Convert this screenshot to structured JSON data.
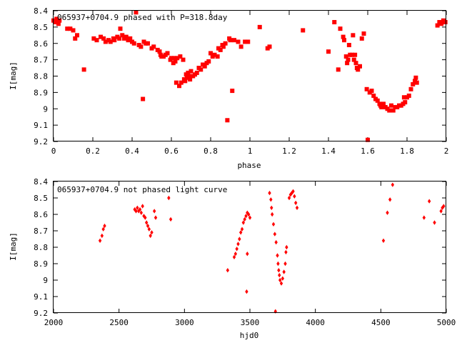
{
  "chart_data": [
    {
      "type": "scatter",
      "title": "065937+0704.9 phased with P=318.8day",
      "xlabel": "phase",
      "ylabel": "I[mag]",
      "xlim": [
        0,
        2
      ],
      "ylim": [
        9.2,
        8.4
      ],
      "y_inverted": true,
      "grid": false,
      "xticks": [
        "0",
        "0.2",
        "0.4",
        "0.6",
        "0.8",
        "1",
        "1.2",
        "1.4",
        "1.6",
        "1.8",
        "2"
      ],
      "yticks": [
        "8.4",
        "8.5",
        "8.6",
        "8.7",
        "8.8",
        "8.9",
        "9",
        "9.1",
        "9.2"
      ],
      "color": "#ff0000",
      "marker": "filled-square",
      "points": [
        [
          0.0,
          8.46
        ],
        [
          0.01,
          8.47
        ],
        [
          0.015,
          8.45
        ],
        [
          0.025,
          8.48
        ],
        [
          0.03,
          8.46
        ],
        [
          0.07,
          8.51
        ],
        [
          0.085,
          8.51
        ],
        [
          0.1,
          8.52
        ],
        [
          0.11,
          8.57
        ],
        [
          0.12,
          8.55
        ],
        [
          0.155,
          8.76
        ],
        [
          0.205,
          8.57
        ],
        [
          0.22,
          8.58
        ],
        [
          0.24,
          8.56
        ],
        [
          0.255,
          8.57
        ],
        [
          0.265,
          8.59
        ],
        [
          0.28,
          8.58
        ],
        [
          0.29,
          8.59
        ],
        [
          0.305,
          8.57
        ],
        [
          0.31,
          8.58
        ],
        [
          0.325,
          8.56
        ],
        [
          0.335,
          8.57
        ],
        [
          0.34,
          8.51
        ],
        [
          0.35,
          8.55
        ],
        [
          0.36,
          8.57
        ],
        [
          0.37,
          8.56
        ],
        [
          0.38,
          8.58
        ],
        [
          0.39,
          8.57
        ],
        [
          0.4,
          8.59
        ],
        [
          0.41,
          8.6
        ],
        [
          0.42,
          8.41
        ],
        [
          0.435,
          8.61
        ],
        [
          0.445,
          8.62
        ],
        [
          0.455,
          8.94
        ],
        [
          0.46,
          8.59
        ],
        [
          0.47,
          8.6
        ],
        [
          0.48,
          8.6
        ],
        [
          0.5,
          8.63
        ],
        [
          0.51,
          8.62
        ],
        [
          0.53,
          8.64
        ],
        [
          0.54,
          8.65
        ],
        [
          0.545,
          8.67
        ],
        [
          0.55,
          8.68
        ],
        [
          0.56,
          8.68
        ],
        [
          0.57,
          8.67
        ],
        [
          0.58,
          8.66
        ],
        [
          0.595,
          8.7
        ],
        [
          0.6,
          8.69
        ],
        [
          0.61,
          8.72
        ],
        [
          0.615,
          8.69
        ],
        [
          0.62,
          8.71
        ],
        [
          0.625,
          8.84
        ],
        [
          0.63,
          8.69
        ],
        [
          0.64,
          8.86
        ],
        [
          0.645,
          8.68
        ],
        [
          0.65,
          8.84
        ],
        [
          0.66,
          8.7
        ],
        [
          0.665,
          8.82
        ],
        [
          0.67,
          8.83
        ],
        [
          0.675,
          8.79
        ],
        [
          0.68,
          8.81
        ],
        [
          0.685,
          8.78
        ],
        [
          0.69,
          8.8
        ],
        [
          0.695,
          8.82
        ],
        [
          0.7,
          8.77
        ],
        [
          0.71,
          8.8
        ],
        [
          0.72,
          8.79
        ],
        [
          0.73,
          8.78
        ],
        [
          0.74,
          8.75
        ],
        [
          0.75,
          8.76
        ],
        [
          0.76,
          8.73
        ],
        [
          0.77,
          8.74
        ],
        [
          0.78,
          8.72
        ],
        [
          0.79,
          8.71
        ],
        [
          0.8,
          8.66
        ],
        [
          0.81,
          8.68
        ],
        [
          0.82,
          8.67
        ],
        [
          0.835,
          8.68
        ],
        [
          0.84,
          8.63
        ],
        [
          0.85,
          8.64
        ],
        [
          0.86,
          8.61
        ],
        [
          0.865,
          8.62
        ],
        [
          0.875,
          8.6
        ],
        [
          0.885,
          9.07
        ],
        [
          0.895,
          8.57
        ],
        [
          0.9,
          8.58
        ],
        [
          0.91,
          8.89
        ],
        [
          0.92,
          8.58
        ],
        [
          0.94,
          8.59
        ],
        [
          0.955,
          8.62
        ],
        [
          0.975,
          8.59
        ],
        [
          0.99,
          8.59
        ],
        [
          1.05,
          8.5
        ],
        [
          1.09,
          8.63
        ],
        [
          1.1,
          8.62
        ],
        [
          1.27,
          8.52
        ],
        [
          1.4,
          8.65
        ],
        [
          1.43,
          8.47
        ],
        [
          1.45,
          8.76
        ],
        [
          1.46,
          8.51
        ],
        [
          1.475,
          8.56
        ],
        [
          1.48,
          8.58
        ],
        [
          1.49,
          8.68
        ],
        [
          1.495,
          8.72
        ],
        [
          1.5,
          8.7
        ],
        [
          1.505,
          8.61
        ],
        [
          1.51,
          8.67
        ],
        [
          1.52,
          8.67
        ],
        [
          1.525,
          8.55
        ],
        [
          1.53,
          8.7
        ],
        [
          1.535,
          8.67
        ],
        [
          1.54,
          8.72
        ],
        [
          1.545,
          8.75
        ],
        [
          1.55,
          8.76
        ],
        [
          1.56,
          8.74
        ],
        [
          1.57,
          8.57
        ],
        [
          1.58,
          8.54
        ],
        [
          1.595,
          8.88
        ],
        [
          1.6,
          9.19
        ],
        [
          1.61,
          8.9
        ],
        [
          1.62,
          8.89
        ],
        [
          1.63,
          8.92
        ],
        [
          1.64,
          8.94
        ],
        [
          1.65,
          8.95
        ],
        [
          1.66,
          8.97
        ],
        [
          1.665,
          8.98
        ],
        [
          1.67,
          8.99
        ],
        [
          1.68,
          8.97
        ],
        [
          1.69,
          8.99
        ],
        [
          1.7,
          9.0
        ],
        [
          1.71,
          9.01
        ],
        [
          1.72,
          8.98
        ],
        [
          1.73,
          9.01
        ],
        [
          1.74,
          8.99
        ],
        [
          1.75,
          8.99
        ],
        [
          1.76,
          8.98
        ],
        [
          1.77,
          8.98
        ],
        [
          1.78,
          8.97
        ],
        [
          1.785,
          8.93
        ],
        [
          1.79,
          8.96
        ],
        [
          1.8,
          8.93
        ],
        [
          1.81,
          8.92
        ],
        [
          1.82,
          8.88
        ],
        [
          1.83,
          8.85
        ],
        [
          1.84,
          8.83
        ],
        [
          1.845,
          8.81
        ],
        [
          1.85,
          8.84
        ],
        [
          1.955,
          8.49
        ],
        [
          1.965,
          8.47
        ],
        [
          1.975,
          8.48
        ],
        [
          1.985,
          8.46
        ],
        [
          1.995,
          8.47
        ]
      ]
    },
    {
      "type": "scatter",
      "title": "065937+0704.9 not phased light curve",
      "xlabel": "hjd0",
      "ylabel": "I[mag]",
      "xlim": [
        2000,
        5000
      ],
      "ylim": [
        9.2,
        8.4
      ],
      "y_inverted": true,
      "grid": false,
      "xticks": [
        "2000",
        "2500",
        "3000",
        "3500",
        "4000",
        "4500",
        "5000"
      ],
      "yticks": [
        "8.4",
        "8.5",
        "8.6",
        "8.7",
        "8.8",
        "8.9",
        "9",
        "9.1",
        "9.2"
      ],
      "color": "#ff0000",
      "marker": "filled-diamond",
      "points": [
        [
          2355,
          8.76
        ],
        [
          2370,
          8.73
        ],
        [
          2380,
          8.69
        ],
        [
          2390,
          8.67
        ],
        [
          2620,
          8.57
        ],
        [
          2630,
          8.58
        ],
        [
          2640,
          8.56
        ],
        [
          2650,
          8.58
        ],
        [
          2660,
          8.57
        ],
        [
          2670,
          8.59
        ],
        [
          2680,
          8.55
        ],
        [
          2690,
          8.61
        ],
        [
          2700,
          8.62
        ],
        [
          2710,
          8.65
        ],
        [
          2720,
          8.67
        ],
        [
          2730,
          8.69
        ],
        [
          2740,
          8.73
        ],
        [
          2750,
          8.71
        ],
        [
          2770,
          8.58
        ],
        [
          2780,
          8.62
        ],
        [
          2880,
          8.5
        ],
        [
          2895,
          8.63
        ],
        [
          3330,
          8.94
        ],
        [
          3380,
          8.86
        ],
        [
          3390,
          8.84
        ],
        [
          3400,
          8.81
        ],
        [
          3410,
          8.78
        ],
        [
          3420,
          8.75
        ],
        [
          3430,
          8.71
        ],
        [
          3440,
          8.69
        ],
        [
          3450,
          8.65
        ],
        [
          3460,
          8.63
        ],
        [
          3470,
          8.61
        ],
        [
          3480,
          8.59
        ],
        [
          3490,
          8.6
        ],
        [
          3475,
          9.07
        ],
        [
          3480,
          8.84
        ],
        [
          3500,
          8.62
        ],
        [
          3650,
          8.47
        ],
        [
          3660,
          8.51
        ],
        [
          3665,
          8.56
        ],
        [
          3670,
          8.6
        ],
        [
          3680,
          8.66
        ],
        [
          3690,
          8.72
        ],
        [
          3695,
          9.19
        ],
        [
          3700,
          8.77
        ],
        [
          3710,
          8.85
        ],
        [
          3715,
          8.9
        ],
        [
          3720,
          8.94
        ],
        [
          3725,
          8.97
        ],
        [
          3730,
          9.0
        ],
        [
          3740,
          9.02
        ],
        [
          3750,
          8.99
        ],
        [
          3760,
          8.95
        ],
        [
          3770,
          8.9
        ],
        [
          3775,
          8.83
        ],
        [
          3780,
          8.8
        ],
        [
          3800,
          8.5
        ],
        [
          3810,
          8.48
        ],
        [
          3820,
          8.47
        ],
        [
          3830,
          8.46
        ],
        [
          3840,
          8.49
        ],
        [
          3850,
          8.53
        ],
        [
          3860,
          8.56
        ],
        [
          4520,
          8.76
        ],
        [
          4550,
          8.59
        ],
        [
          4570,
          8.51
        ],
        [
          4590,
          8.42
        ],
        [
          4830,
          8.62
        ],
        [
          4870,
          8.52
        ],
        [
          4910,
          8.65
        ],
        [
          4960,
          8.58
        ],
        [
          4970,
          8.56
        ],
        [
          4980,
          8.55
        ]
      ]
    }
  ]
}
